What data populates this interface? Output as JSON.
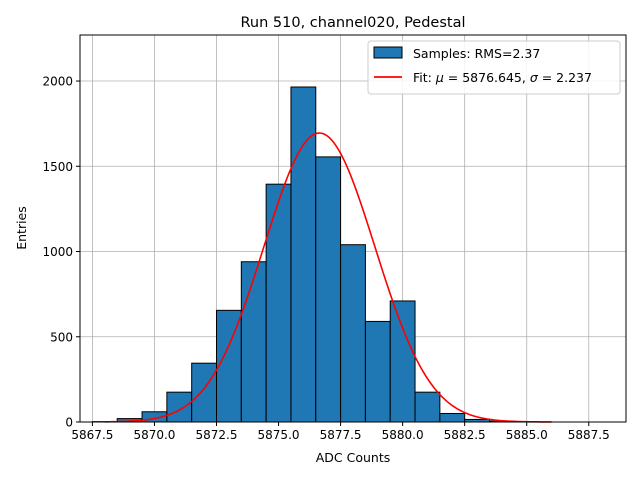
{
  "chart_data": {
    "type": "bar",
    "title": "Run 510, channel020, Pedestal",
    "xlabel": "ADC Counts",
    "ylabel": "Entries",
    "xlim": [
      5867.0,
      5889.0
    ],
    "ylim": [
      0,
      2270
    ],
    "xticks": [
      5867.5,
      5870.0,
      5872.5,
      5875.0,
      5877.5,
      5880.0,
      5882.5,
      5885.0,
      5887.5
    ],
    "xtick_labels": [
      "5867.5",
      "5870.0",
      "5872.5",
      "5875.0",
      "5877.5",
      "5880.0",
      "5882.5",
      "5885.0",
      "5887.5"
    ],
    "yticks": [
      0,
      500,
      1000,
      1500,
      2000
    ],
    "ytick_labels": [
      "0",
      "500",
      "1000",
      "1500",
      "2000"
    ],
    "grid": true,
    "legend_position": "top-right",
    "bin_width": 1,
    "bins": [
      {
        "x": 5868,
        "count": 2
      },
      {
        "x": 5869,
        "count": 20
      },
      {
        "x": 5870,
        "count": 60
      },
      {
        "x": 5871,
        "count": 175
      },
      {
        "x": 5872,
        "count": 345
      },
      {
        "x": 5873,
        "count": 655
      },
      {
        "x": 5874,
        "count": 940
      },
      {
        "x": 5875,
        "count": 1395
      },
      {
        "x": 5876,
        "count": 1965
      },
      {
        "x": 5877,
        "count": 1555
      },
      {
        "x": 5878,
        "count": 1040
      },
      {
        "x": 5879,
        "count": 590
      },
      {
        "x": 5880,
        "count": 710
      },
      {
        "x": 5881,
        "count": 175
      },
      {
        "x": 5882,
        "count": 50
      },
      {
        "x": 5883,
        "count": 15
      },
      {
        "x": 5884,
        "count": 5
      },
      {
        "x": 5885,
        "count": 2
      }
    ],
    "fit": {
      "type": "gaussian",
      "mu": 5876.645,
      "sigma": 2.237,
      "amplitude": 1695,
      "x_range": [
        5868,
        5886
      ]
    },
    "series": [
      {
        "name": "Samples: RMS=2.37",
        "kind": "histogram",
        "color": "#1f77b4",
        "edgecolor": "#000000"
      },
      {
        "name_prefix": "Fit: ",
        "mu_symbol": "μ",
        "mu_text": " = 5876.645, ",
        "sigma_symbol": "σ",
        "sigma_text": " = 2.237",
        "kind": "line",
        "color": "#ff0000"
      }
    ]
  }
}
